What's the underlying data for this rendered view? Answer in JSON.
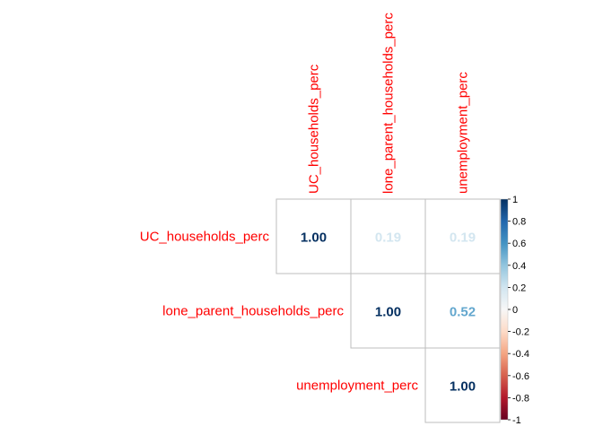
{
  "chart_data": {
    "type": "heatmap",
    "variables": [
      "UC_households_perc",
      "lone_parent_households_perc",
      "unemployment_perc"
    ],
    "matrix_shape": "upper-triangle",
    "cells": [
      {
        "row": "UC_households_perc",
        "col": "UC_households_perc",
        "value": 1.0,
        "label": "1.00"
      },
      {
        "row": "UC_households_perc",
        "col": "lone_parent_households_perc",
        "value": 0.19,
        "label": "0.19"
      },
      {
        "row": "UC_households_perc",
        "col": "unemployment_perc",
        "value": 0.19,
        "label": "0.19"
      },
      {
        "row": "lone_parent_households_perc",
        "col": "lone_parent_households_perc",
        "value": 1.0,
        "label": "1.00"
      },
      {
        "row": "lone_parent_households_perc",
        "col": "unemployment_perc",
        "value": 0.52,
        "label": "0.52"
      },
      {
        "row": "unemployment_perc",
        "col": "unemployment_perc",
        "value": 1.0,
        "label": "1.00"
      }
    ],
    "colorbar": {
      "range": [
        -1,
        1
      ],
      "ticks": [
        "1",
        "0.8",
        "0.6",
        "0.4",
        "0.2",
        "0",
        "-0.2",
        "-0.4",
        "-0.6",
        "-0.8",
        "-1"
      ],
      "tick_values": [
        1,
        0.8,
        0.6,
        0.4,
        0.2,
        0,
        -0.2,
        -0.4,
        -0.6,
        -0.8,
        -1
      ],
      "position": "right"
    },
    "colors": {
      "label_text": "#ff0000",
      "cell_border": "#bebebe",
      "background": "#ffffff",
      "scale_neg_end": "#67001f",
      "scale_mid": "#f7f7f7",
      "scale_pos_end": "#053061"
    }
  }
}
